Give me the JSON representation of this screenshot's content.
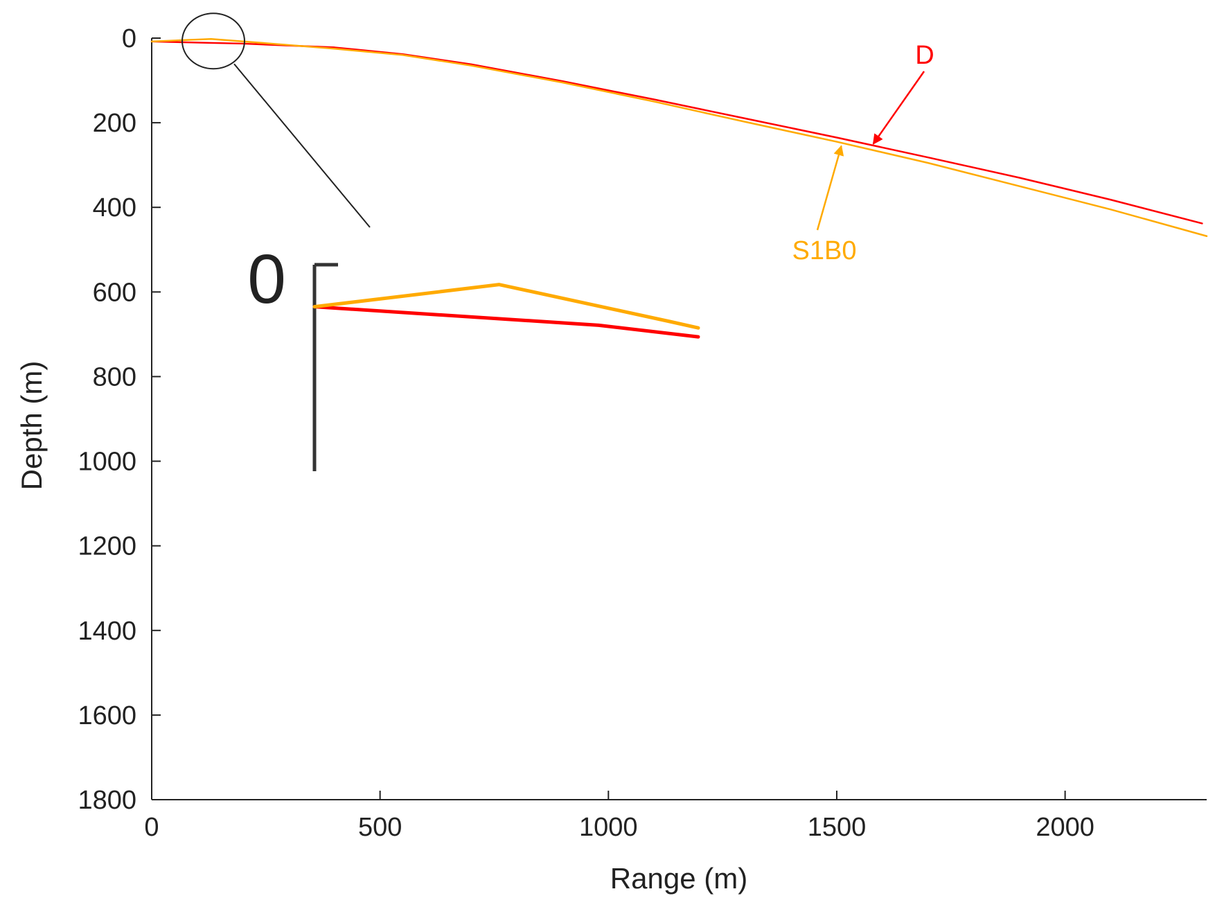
{
  "chart_data": {
    "type": "line",
    "title": "",
    "xlabel": "Range (m)",
    "ylabel": "Depth (m)",
    "xlim": [
      0,
      2310
    ],
    "ylim": [
      0,
      1800
    ],
    "y_inverted": true,
    "xticks": [
      0,
      500,
      1000,
      1500,
      2000
    ],
    "yticks": [
      0,
      200,
      400,
      600,
      800,
      1000,
      1200,
      1400,
      1600,
      1800
    ],
    "grid": false,
    "legend": "none",
    "series": [
      {
        "name": "D",
        "color": "#ff0000",
        "x": [
          0,
          200,
          400,
          550,
          700,
          900,
          1100,
          1300,
          1500,
          1700,
          1900,
          2100,
          2300
        ],
        "y": [
          8,
          13,
          22,
          38,
          62,
          102,
          145,
          190,
          235,
          282,
          330,
          382,
          438
        ]
      },
      {
        "name": "S1B0",
        "color": "#ffaa00",
        "x": [
          0,
          130,
          250,
          400,
          550,
          700,
          900,
          1100,
          1300,
          1500,
          1700,
          1900,
          2100,
          2310
        ],
        "y": [
          8,
          2,
          12,
          25,
          40,
          65,
          105,
          150,
          198,
          245,
          295,
          350,
          405,
          468
        ]
      }
    ],
    "annotations": [
      {
        "text": "D",
        "color": "#ff0000",
        "points_to": {
          "x": 1580,
          "y": 250
        }
      },
      {
        "text": "S1B0",
        "color": "#ffaa00",
        "points_to": {
          "x": 1510,
          "y": 255
        }
      }
    ],
    "inset": {
      "label": "0",
      "zoom_circle_center": {
        "x": 135,
        "y": 7
      }
    }
  }
}
